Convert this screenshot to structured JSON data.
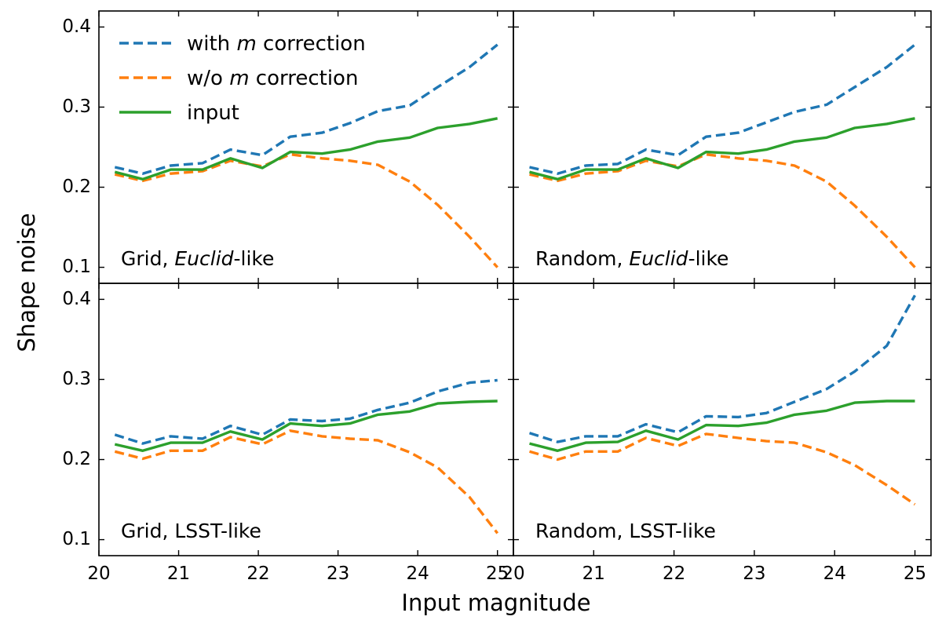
{
  "chart_data": {
    "type": "line",
    "layout": "2x2 panels, shared axes",
    "xlabel": "Input magnitude",
    "ylabel": "Shape noise",
    "xlim": [
      20,
      25.2
    ],
    "ylim_top_row": [
      0.08,
      0.42
    ],
    "ylim_bottom_row": [
      0.08,
      0.42
    ],
    "x_ticks": [
      20,
      21,
      22,
      23,
      24,
      25
    ],
    "y_ticks": [
      0.1,
      0.2,
      0.3,
      0.4
    ],
    "x_tick_labels": [
      "20",
      "21",
      "22",
      "23",
      "24",
      "25"
    ],
    "y_tick_labels": [
      "0.1",
      "0.2",
      "0.3",
      "0.4"
    ],
    "x": [
      20.2,
      20.55,
      20.9,
      21.3,
      21.65,
      22.05,
      22.4,
      22.8,
      23.15,
      23.5,
      23.9,
      24.25,
      24.65,
      25.0
    ],
    "legend": [
      {
        "label_prefix": "with ",
        "label_italic": "m",
        "label_suffix": " correction",
        "color": "#1f77b4",
        "dash": "dashed"
      },
      {
        "label_prefix": "w/o  ",
        "label_italic": "m",
        "label_suffix": " correction",
        "color": "#ff7f0e",
        "dash": "dashed"
      },
      {
        "label_prefix": "input",
        "label_italic": "",
        "label_suffix": "",
        "color": "#2ca02c",
        "dash": "solid"
      }
    ],
    "panels": [
      {
        "id": "grid-euclid",
        "label_prefix": "Grid, ",
        "label_italic": "Euclid",
        "label_suffix": "-like",
        "series": [
          {
            "name": "with m correction",
            "values": [
              0.225,
              0.217,
              0.227,
              0.23,
              0.247,
              0.24,
              0.263,
              0.268,
              0.28,
              0.295,
              0.302,
              0.325,
              0.35,
              0.378
            ]
          },
          {
            "name": "w/o m correction",
            "values": [
              0.216,
              0.208,
              0.217,
              0.22,
              0.233,
              0.226,
              0.241,
              0.236,
              0.233,
              0.228,
              0.207,
              0.178,
              0.138,
              0.1
            ]
          },
          {
            "name": "input",
            "values": [
              0.219,
              0.21,
              0.222,
              0.222,
              0.236,
              0.224,
              0.244,
              0.242,
              0.247,
              0.257,
              0.262,
              0.274,
              0.279,
              0.286
            ]
          }
        ]
      },
      {
        "id": "random-euclid",
        "label_prefix": "Random, ",
        "label_italic": "Euclid",
        "label_suffix": "-like",
        "series": [
          {
            "name": "with m correction",
            "values": [
              0.225,
              0.217,
              0.227,
              0.229,
              0.247,
              0.24,
              0.263,
              0.268,
              0.281,
              0.294,
              0.303,
              0.325,
              0.35,
              0.378
            ]
          },
          {
            "name": "w/o m correction",
            "values": [
              0.216,
              0.208,
              0.217,
              0.22,
              0.233,
              0.226,
              0.241,
              0.236,
              0.233,
              0.227,
              0.207,
              0.177,
              0.138,
              0.1
            ]
          },
          {
            "name": "input",
            "values": [
              0.219,
              0.21,
              0.222,
              0.222,
              0.236,
              0.224,
              0.244,
              0.242,
              0.247,
              0.257,
              0.262,
              0.274,
              0.279,
              0.286
            ]
          }
        ]
      },
      {
        "id": "grid-lsst",
        "label_prefix": "Grid, LSST-like",
        "label_italic": "",
        "label_suffix": "",
        "series": [
          {
            "name": "with m correction",
            "values": [
              0.231,
              0.22,
              0.229,
              0.226,
              0.242,
              0.231,
              0.25,
              0.248,
              0.251,
              0.262,
              0.271,
              0.285,
              0.296,
              0.299
            ]
          },
          {
            "name": "w/o m correction",
            "values": [
              0.21,
              0.201,
              0.211,
              0.211,
              0.228,
              0.219,
              0.236,
              0.229,
              0.226,
              0.224,
              0.209,
              0.19,
              0.153,
              0.108
            ]
          },
          {
            "name": "input",
            "values": [
              0.219,
              0.211,
              0.221,
              0.221,
              0.235,
              0.225,
              0.245,
              0.242,
              0.245,
              0.256,
              0.26,
              0.27,
              0.272,
              0.273
            ]
          }
        ]
      },
      {
        "id": "random-lsst",
        "label_prefix": "Random, LSST-like",
        "label_italic": "",
        "label_suffix": "",
        "series": [
          {
            "name": "with m correction",
            "values": [
              0.233,
              0.222,
              0.229,
              0.229,
              0.244,
              0.234,
              0.254,
              0.253,
              0.258,
              0.272,
              0.288,
              0.31,
              0.342,
              0.405
            ]
          },
          {
            "name": "w/o m correction",
            "values": [
              0.21,
              0.2,
              0.21,
              0.21,
              0.227,
              0.217,
              0.232,
              0.227,
              0.223,
              0.221,
              0.209,
              0.193,
              0.168,
              0.144
            ]
          },
          {
            "name": "input",
            "values": [
              0.22,
              0.211,
              0.221,
              0.222,
              0.236,
              0.225,
              0.243,
              0.242,
              0.246,
              0.256,
              0.261,
              0.271,
              0.273,
              0.273
            ]
          }
        ]
      }
    ]
  }
}
